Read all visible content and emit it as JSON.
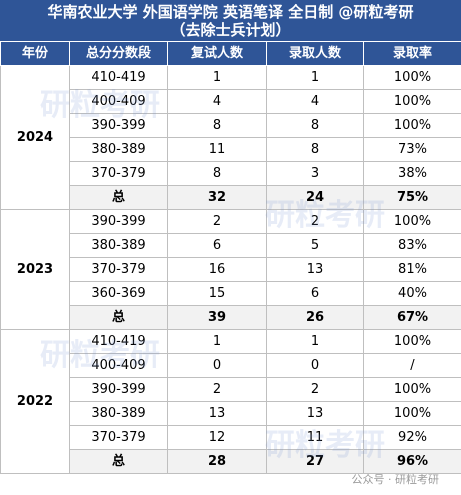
{
  "title": {
    "line1": "华南农业大学 外国语学院 英语笔译 全日制 @研粒考研",
    "line2": "（去除士兵计划）"
  },
  "headers": [
    "年份",
    "总分分数段",
    "复试人数",
    "录取人数",
    "录取率"
  ],
  "groups": [
    {
      "year": "2024",
      "rows": [
        [
          "410-419",
          "1",
          "1",
          "100%"
        ],
        [
          "400-409",
          "4",
          "4",
          "100%"
        ],
        [
          "390-399",
          "8",
          "8",
          "100%"
        ],
        [
          "380-389",
          "11",
          "8",
          "73%"
        ],
        [
          "370-379",
          "8",
          "3",
          "38%"
        ]
      ],
      "total": [
        "总",
        "32",
        "24",
        "75%"
      ]
    },
    {
      "year": "2023",
      "rows": [
        [
          "390-399",
          "2",
          "2",
          "100%"
        ],
        [
          "380-389",
          "6",
          "5",
          "83%"
        ],
        [
          "370-379",
          "16",
          "13",
          "81%"
        ],
        [
          "360-369",
          "15",
          "6",
          "40%"
        ]
      ],
      "total": [
        "总",
        "39",
        "26",
        "67%"
      ]
    },
    {
      "year": "2022",
      "rows": [
        [
          "410-419",
          "1",
          "1",
          "100%"
        ],
        [
          "400-409",
          "0",
          "0",
          "/"
        ],
        [
          "390-399",
          "2",
          "2",
          "100%"
        ],
        [
          "380-389",
          "13",
          "13",
          "100%"
        ],
        [
          "370-379",
          "12",
          "11",
          "92%"
        ]
      ],
      "total": [
        "总",
        "28",
        "27",
        "96%"
      ]
    }
  ],
  "watermark": "研粒考研",
  "source": "公众号 · 研粒考研"
}
